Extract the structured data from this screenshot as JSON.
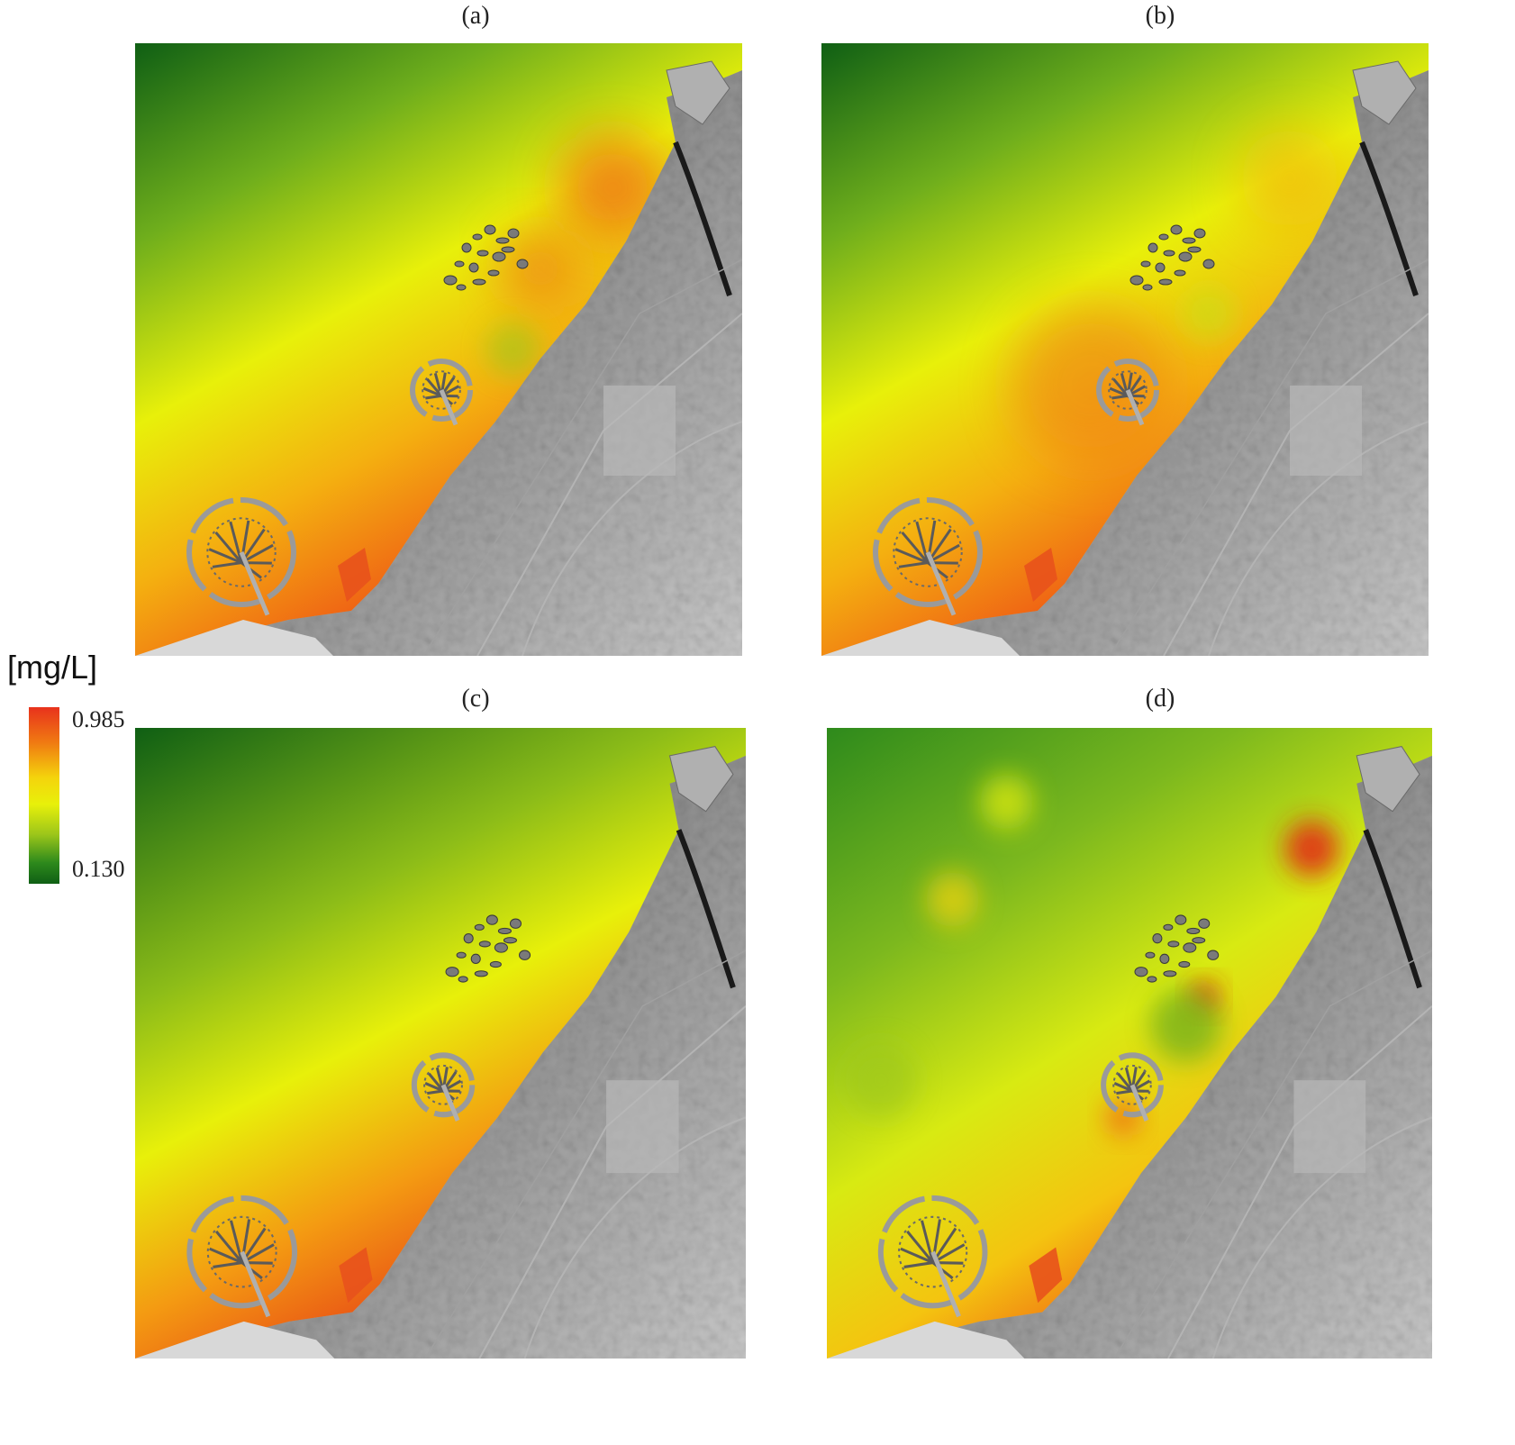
{
  "panels": [
    {
      "label": "(a)",
      "variant": "a"
    },
    {
      "label": "(b)",
      "variant": "b"
    },
    {
      "label": "(c)",
      "variant": "c"
    },
    {
      "label": "(d)",
      "variant": "d"
    }
  ],
  "legend": {
    "unit": "[mg/L]",
    "max_label": "0.985",
    "min_label": "0.130",
    "max_value": 0.985,
    "min_value": 0.13,
    "colors": [
      "#e8321c",
      "#f07a12",
      "#f4d40c",
      "#e8f00a",
      "#9cc61a",
      "#2e8a1c",
      "#0f5f14"
    ]
  },
  "colors": {
    "sea_low": "#0f5f14",
    "sea_mid": "#e8f00a",
    "sea_high": "#e8321c",
    "land": "#8a8a8a"
  }
}
